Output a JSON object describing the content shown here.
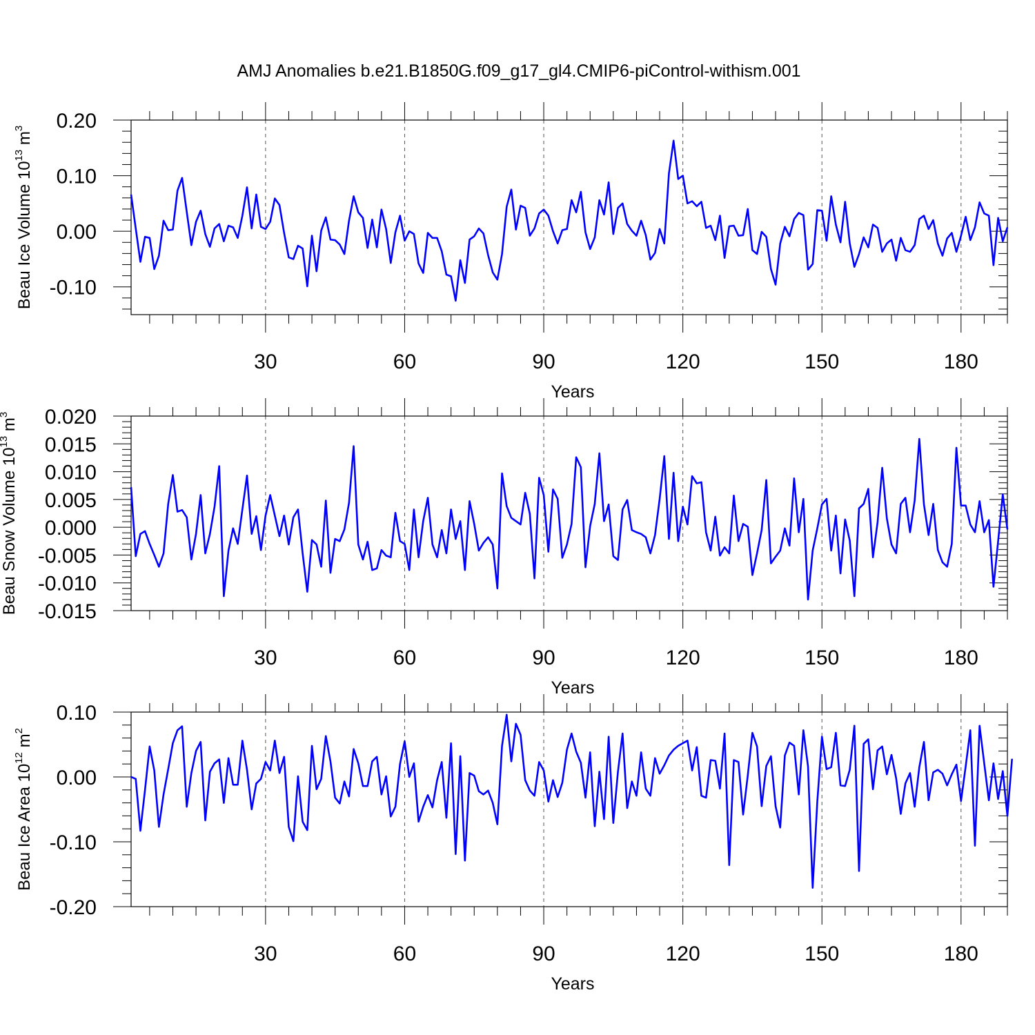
{
  "title": "AMJ Anomalies b.e21.B1850G.f09_g17_gl4.CMIP6-piControl-withism.001",
  "chart_data": [
    {
      "type": "line",
      "xlabel": "Years",
      "ylabel_main": "Beau Ice Volume 10",
      "ylabel_exp": "13",
      "ylabel_unit": " m",
      "ylabel_unit_exp": "3",
      "xlim": [
        1,
        190
      ],
      "ylim": [
        -0.15,
        0.2
      ],
      "xticks": [
        30,
        60,
        90,
        120,
        150,
        180
      ],
      "yticks": [
        -0.1,
        0.0,
        0.1,
        0.2
      ],
      "ytick_labels": [
        "-0.10",
        "0.00",
        "0.10",
        "0.20"
      ],
      "yminor": [
        -0.14,
        -0.12,
        -0.08,
        -0.06,
        -0.04,
        -0.02,
        0.02,
        0.04,
        0.06,
        0.08,
        0.12,
        0.14,
        0.16,
        0.18
      ],
      "grid": "x-major-dashed",
      "color": "#0000ff",
      "y": [
        0.066,
        0.005,
        -0.055,
        -0.01,
        -0.012,
        -0.068,
        -0.044,
        0.019,
        0.002,
        0.003,
        0.073,
        0.096,
        0.035,
        -0.025,
        0.017,
        0.037,
        -0.005,
        -0.028,
        0.005,
        0.013,
        -0.018,
        0.01,
        0.007,
        -0.012,
        0.028,
        0.079,
        0.005,
        0.066,
        0.008,
        0.004,
        0.017,
        0.059,
        0.047,
        -0.003,
        -0.047,
        -0.05,
        -0.026,
        -0.031,
        -0.099,
        -0.008,
        -0.072,
        0.001,
        0.025,
        -0.015,
        -0.016,
        -0.024,
        -0.041,
        0.019,
        0.063,
        0.034,
        0.024,
        -0.03,
        0.021,
        -0.029,
        0.039,
        0.004,
        -0.057,
        -0.002,
        0.028,
        -0.017,
        0.0,
        -0.005,
        -0.058,
        -0.075,
        -0.003,
        -0.012,
        -0.012,
        -0.036,
        -0.078,
        -0.081,
        -0.125,
        -0.052,
        -0.093,
        -0.015,
        -0.009,
        0.005,
        -0.004,
        -0.043,
        -0.074,
        -0.087,
        -0.041,
        0.044,
        0.075,
        0.003,
        0.046,
        0.042,
        -0.008,
        0.005,
        0.032,
        0.039,
        0.028,
        0.0,
        -0.022,
        0.002,
        0.004,
        0.056,
        0.034,
        0.071,
        -0.002,
        -0.032,
        -0.011,
        0.056,
        0.03,
        0.088,
        -0.005,
        0.042,
        0.05,
        0.013,
        0.001,
        -0.008,
        0.019,
        -0.007,
        -0.051,
        -0.039,
        0.004,
        -0.022,
        0.104,
        0.163,
        0.094,
        0.1,
        0.05,
        0.054,
        0.045,
        0.053,
        0.006,
        0.01,
        -0.016,
        0.028,
        -0.048,
        0.009,
        0.01,
        -0.008,
        -0.007,
        0.04,
        -0.034,
        -0.041,
        -0.001,
        -0.01,
        -0.068,
        -0.096,
        -0.022,
        0.008,
        -0.009,
        0.022,
        0.033,
        0.029,
        -0.069,
        -0.059,
        0.038,
        0.037,
        -0.017,
        0.063,
        0.012,
        -0.02,
        0.053,
        -0.022,
        -0.064,
        -0.041,
        -0.011,
        -0.029,
        0.012,
        0.006,
        -0.037,
        -0.022,
        -0.015,
        -0.053,
        -0.012,
        -0.034,
        -0.037,
        -0.025,
        0.022,
        0.028,
        0.004,
        0.02,
        -0.022,
        -0.044,
        -0.013,
        -0.003,
        -0.037,
        -0.008,
        0.026,
        -0.016,
        0.007,
        0.052,
        0.032,
        0.028,
        -0.061,
        0.024,
        -0.018,
        0.007
      ]
    },
    {
      "type": "line",
      "xlabel": "Years",
      "ylabel_main": "Beau Snow Volume 10",
      "ylabel_exp": "13",
      "ylabel_unit": " m",
      "ylabel_unit_exp": "3",
      "xlim": [
        1,
        190
      ],
      "ylim": [
        -0.015,
        0.02
      ],
      "xticks": [
        30,
        60,
        90,
        120,
        150,
        180
      ],
      "yticks": [
        -0.015,
        -0.01,
        -0.005,
        0.0,
        0.005,
        0.01,
        0.015,
        0.02
      ],
      "ytick_labels": [
        "-0.015",
        "-0.010",
        "-0.005",
        "0.000",
        "0.005",
        "0.010",
        "0.015",
        "0.020"
      ],
      "yminor": [
        -0.014,
        -0.013,
        -0.012,
        -0.011,
        -0.009,
        -0.008,
        -0.007,
        -0.006,
        -0.004,
        -0.003,
        -0.002,
        -0.001,
        0.001,
        0.002,
        0.003,
        0.004,
        0.006,
        0.007,
        0.008,
        0.009,
        0.011,
        0.012,
        0.013,
        0.014,
        0.016,
        0.017,
        0.018,
        0.019
      ],
      "grid": "x-major-dashed",
      "color": "#0000ff",
      "y": [
        0.0072,
        -0.0052,
        -0.0012,
        -0.0007,
        -0.003,
        -0.005,
        -0.0071,
        -0.0047,
        0.0042,
        0.0094,
        0.0028,
        0.0031,
        0.0018,
        -0.0058,
        -0.0012,
        0.0058,
        -0.0047,
        -0.0012,
        0.0037,
        0.011,
        -0.0124,
        -0.0042,
        -0.0002,
        -0.003,
        0.0032,
        0.0093,
        -0.0012,
        0.002,
        -0.0041,
        0.0021,
        0.0058,
        0.0021,
        -0.0016,
        0.0021,
        -0.0031,
        0.0018,
        0.0032,
        -0.0047,
        -0.0116,
        -0.0023,
        -0.0031,
        -0.0071,
        0.0048,
        -0.0082,
        -0.0021,
        -0.0025,
        -0.0004,
        0.0044,
        0.0146,
        -0.0031,
        -0.0058,
        -0.0026,
        -0.0077,
        -0.0074,
        -0.0041,
        -0.0051,
        -0.0054,
        0.0026,
        -0.0025,
        -0.003,
        -0.0077,
        0.0032,
        -0.0054,
        0.0011,
        0.0053,
        -0.0031,
        -0.0054,
        -0.0005,
        -0.0047,
        0.0032,
        -0.0021,
        0.0011,
        -0.0077,
        0.0047,
        0.0006,
        -0.0042,
        -0.0028,
        -0.0018,
        -0.0031,
        -0.011,
        0.0097,
        0.0038,
        0.0017,
        0.0011,
        0.0005,
        0.0062,
        0.0024,
        -0.0092,
        0.0089,
        0.0058,
        -0.0044,
        0.0068,
        0.0051,
        -0.0055,
        -0.0031,
        0.0006,
        0.0126,
        0.0108,
        -0.0072,
        0.0002,
        0.0042,
        0.0133,
        0.0011,
        0.0041,
        -0.0052,
        -0.0059,
        0.0032,
        0.0049,
        -0.0005,
        -0.0009,
        -0.0012,
        -0.0018,
        -0.0047,
        -0.0014,
        0.0051,
        0.0128,
        -0.0021,
        0.0098,
        -0.0025,
        0.0037,
        0.0005,
        0.0092,
        0.0079,
        0.0081,
        -0.0009,
        -0.0042,
        0.0019,
        -0.0051,
        -0.0036,
        -0.0047,
        0.0057,
        -0.0025,
        0.0006,
        0.0001,
        -0.0086,
        -0.0047,
        -0.0005,
        0.0085,
        -0.0065,
        -0.0053,
        -0.0042,
        -0.0002,
        -0.0033,
        0.0088,
        -0.0009,
        0.0051,
        -0.013,
        -0.0042,
        -0.0002,
        0.0041,
        0.0051,
        -0.0042,
        0.0021,
        -0.0083,
        0.0014,
        -0.0024,
        -0.0124,
        0.0034,
        0.0042,
        0.0069,
        -0.0054,
        0.0009,
        0.0107,
        0.0016,
        -0.0031,
        -0.0047,
        0.0042,
        0.0053,
        -0.0009,
        0.0048,
        0.0159,
        0.0041,
        -0.0014,
        0.0042,
        -0.0041,
        -0.0063,
        -0.0071,
        -0.003,
        0.0143,
        0.0039,
        0.0039,
        0.0005,
        -0.0009,
        0.0047,
        -0.0009,
        0.0013,
        -0.0107,
        -0.0025,
        0.0059,
        -0.0004
      ]
    },
    {
      "type": "line",
      "xlabel": "Years",
      "ylabel_main": "Beau Ice Area 10",
      "ylabel_exp": "12",
      "ylabel_unit": " m",
      "ylabel_unit_exp": "2",
      "xlim": [
        1,
        190
      ],
      "ylim": [
        -0.2,
        0.1
      ],
      "xticks": [
        30,
        60,
        90,
        120,
        150,
        180
      ],
      "yticks": [
        -0.2,
        -0.1,
        0.0,
        0.1
      ],
      "ytick_labels": [
        "-0.20",
        "-0.10",
        "0.00",
        "0.10"
      ],
      "yminor": [
        -0.18,
        -0.16,
        -0.14,
        -0.12,
        -0.08,
        -0.06,
        -0.04,
        -0.02,
        0.02,
        0.04,
        0.06,
        0.08
      ],
      "grid": "x-major-dashed",
      "color": "#0000ff",
      "y": [
        0.0,
        -0.003,
        -0.083,
        -0.02,
        0.047,
        0.01,
        -0.077,
        -0.027,
        0.012,
        0.052,
        0.072,
        0.078,
        -0.046,
        0.006,
        0.04,
        0.054,
        -0.067,
        0.008,
        0.021,
        0.027,
        -0.04,
        0.029,
        -0.012,
        -0.012,
        0.056,
        0.011,
        -0.05,
        -0.01,
        -0.003,
        0.023,
        0.01,
        0.056,
        0.006,
        0.031,
        -0.077,
        -0.099,
        0.001,
        -0.069,
        -0.082,
        0.048,
        -0.019,
        -0.003,
        0.063,
        0.024,
        -0.032,
        -0.041,
        -0.007,
        -0.03,
        0.043,
        0.021,
        -0.014,
        -0.014,
        0.024,
        0.031,
        -0.027,
        0.001,
        -0.061,
        -0.046,
        0.02,
        0.055,
        0.0,
        0.021,
        -0.069,
        -0.046,
        -0.028,
        -0.047,
        -0.005,
        0.023,
        -0.063,
        0.052,
        -0.119,
        0.032,
        -0.129,
        0.006,
        0.002,
        -0.022,
        -0.027,
        -0.021,
        -0.04,
        -0.073,
        0.048,
        0.096,
        0.024,
        0.082,
        0.065,
        -0.005,
        -0.021,
        -0.029,
        0.023,
        0.01,
        -0.038,
        -0.005,
        -0.031,
        -0.009,
        0.042,
        0.067,
        0.039,
        0.022,
        -0.032,
        0.038,
        -0.076,
        0.008,
        -0.065,
        0.062,
        -0.071,
        0.008,
        0.067,
        -0.048,
        -0.007,
        -0.029,
        0.038,
        -0.018,
        -0.029,
        0.029,
        0.005,
        0.018,
        0.033,
        0.042,
        0.048,
        0.052,
        0.056,
        0.01,
        0.046,
        -0.029,
        -0.032,
        0.026,
        0.025,
        -0.018,
        0.067,
        -0.136,
        0.026,
        0.023,
        -0.058,
        0.002,
        0.068,
        0.047,
        -0.045,
        0.017,
        0.032,
        -0.045,
        -0.078,
        0.033,
        0.053,
        0.048,
        -0.027,
        0.072,
        0.016,
        -0.171,
        -0.038,
        0.062,
        0.012,
        0.015,
        0.068,
        -0.013,
        -0.014,
        0.011,
        0.079,
        -0.145,
        0.051,
        0.058,
        -0.019,
        0.041,
        0.047,
        0.004,
        0.034,
        -0.002,
        -0.057,
        -0.01,
        0.006,
        -0.046,
        0.015,
        0.054,
        -0.036,
        0.007,
        0.011,
        0.005,
        -0.013,
        0.004,
        0.019,
        -0.037,
        0.016,
        0.072,
        -0.106,
        0.079,
        0.021,
        -0.036,
        0.021,
        -0.034,
        0.009,
        -0.06,
        0.028
      ]
    }
  ]
}
